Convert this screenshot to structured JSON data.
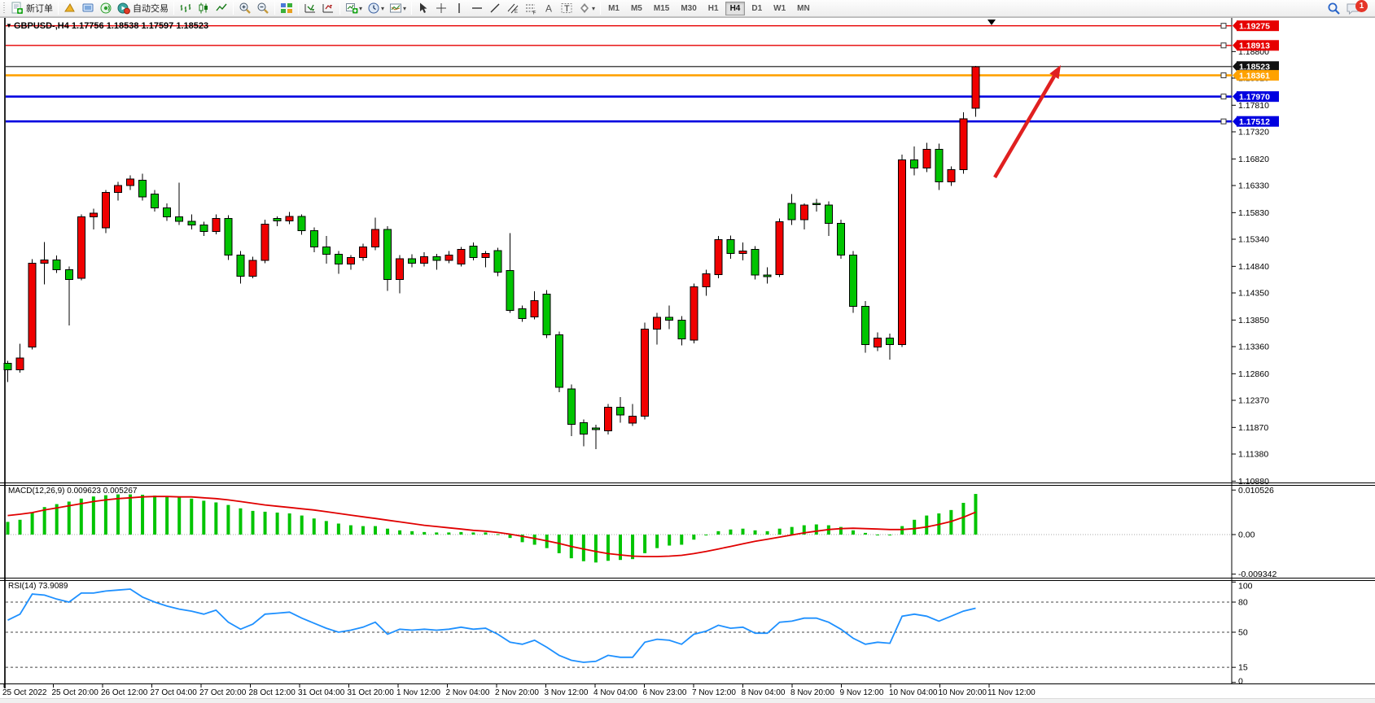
{
  "toolbar": {
    "new_order_label": "新订单",
    "autotrading_label": "自动交易",
    "timeframes": [
      "M1",
      "M5",
      "M15",
      "M30",
      "H1",
      "H4",
      "D1",
      "W1",
      "MN"
    ],
    "active_timeframe": "H4",
    "notification_badge": "1"
  },
  "chart": {
    "title": "GBPUSD-,H4  1.17756 1.18538 1.17597 1.18523",
    "symbol": "GBPUSD-",
    "period": "H4",
    "ohlc": {
      "open": "1.17756",
      "high": "1.18538",
      "low": "1.17597",
      "close": "1.18523"
    },
    "colors": {
      "bull": "#f00000",
      "bear": "#00c400",
      "wick": "#000000",
      "resistance": "#e60000",
      "support": "#0000e0",
      "pivot": "#ffa200",
      "price_line": "#111111"
    },
    "y_axis_labels": [
      "1.18800",
      "1.18310",
      "1.17810",
      "1.17320",
      "1.16820",
      "1.16330",
      "1.15830",
      "1.15340",
      "1.14840",
      "1.14350",
      "1.13850",
      "1.13360",
      "1.12860",
      "1.12370",
      "1.11870",
      "1.11380",
      "1.10880"
    ],
    "price_markers": [
      {
        "label": "1.19275",
        "price": 1.19275,
        "color": "#e60000"
      },
      {
        "label": "1.18913",
        "price": 1.18913,
        "color": "#e60000"
      },
      {
        "label": "1.18523",
        "price": 1.18523,
        "color": "#111111"
      },
      {
        "label": "1.18361",
        "price": 1.18361,
        "color": "#ffa200"
      },
      {
        "label": "1.17970",
        "price": 1.1797,
        "color": "#0000e0"
      },
      {
        "label": "1.17512",
        "price": 1.17512,
        "color": "#0000e0"
      }
    ],
    "hlines": [
      {
        "price": 1.19275,
        "color": "#e60000",
        "w": 1.4,
        "handle": true
      },
      {
        "price": 1.18913,
        "color": "#e60000",
        "w": 1.4,
        "handle": true
      },
      {
        "price": 1.18523,
        "color": "#111111",
        "w": 1.1,
        "handle": false
      },
      {
        "price": 1.18361,
        "color": "#ffa200",
        "w": 2.6,
        "handle": true
      },
      {
        "price": 1.1797,
        "color": "#0000e0",
        "w": 2.6,
        "handle": true
      },
      {
        "price": 1.17512,
        "color": "#0000e0",
        "w": 2.6,
        "handle": true
      }
    ],
    "time_labels": [
      "25 Oct 2022",
      "25 Oct 20:00",
      "26 Oct 12:00",
      "27 Oct 04:00",
      "27 Oct 20:00",
      "28 Oct 12:00",
      "31 Oct 04:00",
      "31 Oct 20:00",
      "1 Nov 12:00",
      "2 Nov 04:00",
      "2 Nov 20:00",
      "3 Nov 12:00",
      "4 Nov 04:00",
      "6 Nov 23:00",
      "7 Nov 12:00",
      "8 Nov 04:00",
      "8 Nov 20:00",
      "9 Nov 12:00",
      "10 Nov 04:00",
      "10 Nov 20:00",
      "11 Nov 12:00"
    ]
  },
  "chart_data": {
    "type": "candlestick",
    "symbol": "GBPUSD",
    "timeframe": "H4",
    "ylim": [
      1.1088,
      1.195
    ],
    "candles": [
      [
        1.1305,
        1.131,
        1.1271,
        1.1293
      ],
      [
        1.1293,
        1.1341,
        1.1288,
        1.1315
      ],
      [
        1.1335,
        1.1497,
        1.1331,
        1.149
      ],
      [
        1.149,
        1.1529,
        1.1451,
        1.1496
      ],
      [
        1.1496,
        1.1504,
        1.1472,
        1.1478
      ],
      [
        1.1478,
        1.1484,
        1.1375,
        1.146
      ],
      [
        1.1462,
        1.158,
        1.1458,
        1.1575
      ],
      [
        1.1575,
        1.159,
        1.1552,
        1.1582
      ],
      [
        1.1555,
        1.1625,
        1.1545,
        1.162
      ],
      [
        1.162,
        1.164,
        1.1605,
        1.1633
      ],
      [
        1.1633,
        1.1652,
        1.1625,
        1.1645
      ],
      [
        1.1643,
        1.1655,
        1.1605,
        1.1612
      ],
      [
        1.1617,
        1.1625,
        1.1585,
        1.1592
      ],
      [
        1.1592,
        1.16,
        1.1568,
        1.1575
      ],
      [
        1.1575,
        1.1638,
        1.156,
        1.1567
      ],
      [
        1.1567,
        1.158,
        1.1552,
        1.156
      ],
      [
        1.156,
        1.1566,
        1.154,
        1.1548
      ],
      [
        1.1548,
        1.158,
        1.1543,
        1.1572
      ],
      [
        1.1572,
        1.1578,
        1.1496,
        1.1505
      ],
      [
        1.1505,
        1.1512,
        1.1452,
        1.1466
      ],
      [
        1.1466,
        1.1502,
        1.1462,
        1.1495
      ],
      [
        1.1495,
        1.157,
        1.149,
        1.1562
      ],
      [
        1.1572,
        1.1576,
        1.1558,
        1.1568
      ],
      [
        1.1568,
        1.1584,
        1.1562,
        1.1576
      ],
      [
        1.1576,
        1.158,
        1.1542,
        1.155
      ],
      [
        1.155,
        1.1556,
        1.151,
        1.152
      ],
      [
        1.152,
        1.154,
        1.1489,
        1.1506
      ],
      [
        1.1506,
        1.1512,
        1.147,
        1.1488
      ],
      [
        1.1488,
        1.1505,
        1.1478,
        1.15
      ],
      [
        1.15,
        1.1526,
        1.1494,
        1.152
      ],
      [
        1.152,
        1.1574,
        1.1514,
        1.1552
      ],
      [
        1.1552,
        1.1558,
        1.1439,
        1.146
      ],
      [
        1.146,
        1.1505,
        1.1434,
        1.1498
      ],
      [
        1.1498,
        1.1506,
        1.1482,
        1.149
      ],
      [
        1.149,
        1.151,
        1.1484,
        1.1502
      ],
      [
        1.1502,
        1.1507,
        1.1478,
        1.1495
      ],
      [
        1.1495,
        1.1512,
        1.149,
        1.1505
      ],
      [
        1.1488,
        1.152,
        1.1484,
        1.1515
      ],
      [
        1.1521,
        1.1528,
        1.1495,
        1.15
      ],
      [
        1.15,
        1.1512,
        1.1482,
        1.1508
      ],
      [
        1.1513,
        1.1518,
        1.1466,
        1.1473
      ],
      [
        1.1476,
        1.1545,
        1.1398,
        1.1403
      ],
      [
        1.1406,
        1.1412,
        1.1382,
        1.1388
      ],
      [
        1.1391,
        1.1438,
        1.1386,
        1.1421
      ],
      [
        1.1433,
        1.144,
        1.1352,
        1.1358
      ],
      [
        1.1358,
        1.1364,
        1.1252,
        1.1261
      ],
      [
        1.1258,
        1.1266,
        1.1171,
        1.1193
      ],
      [
        1.1196,
        1.1202,
        1.1152,
        1.1175
      ],
      [
        1.1186,
        1.1192,
        1.1147,
        1.1183
      ],
      [
        1.1181,
        1.123,
        1.1174,
        1.1224
      ],
      [
        1.1224,
        1.1243,
        1.1196,
        1.121
      ],
      [
        1.1195,
        1.123,
        1.119,
        1.1208
      ],
      [
        1.1208,
        1.138,
        1.1202,
        1.1368
      ],
      [
        1.1368,
        1.1398,
        1.134,
        1.139
      ],
      [
        1.139,
        1.1412,
        1.1368,
        1.1385
      ],
      [
        1.1385,
        1.1392,
        1.1338,
        1.135
      ],
      [
        1.1348,
        1.1452,
        1.1342,
        1.1446
      ],
      [
        1.1446,
        1.1478,
        1.143,
        1.147
      ],
      [
        1.1469,
        1.154,
        1.1462,
        1.1533
      ],
      [
        1.1533,
        1.1541,
        1.1498,
        1.1508
      ],
      [
        1.1508,
        1.1528,
        1.1495,
        1.1512
      ],
      [
        1.1515,
        1.1521,
        1.146,
        1.1468
      ],
      [
        1.1468,
        1.1482,
        1.1452,
        1.1465
      ],
      [
        1.1469,
        1.1572,
        1.1464,
        1.1566
      ],
      [
        1.16,
        1.1617,
        1.156,
        1.157
      ],
      [
        1.157,
        1.16,
        1.1552,
        1.1597
      ],
      [
        1.16,
        1.1608,
        1.1585,
        1.1598
      ],
      [
        1.1597,
        1.1604,
        1.154,
        1.1563
      ],
      [
        1.1563,
        1.157,
        1.1498,
        1.1505
      ],
      [
        1.1505,
        1.1512,
        1.1398,
        1.141
      ],
      [
        1.141,
        1.142,
        1.1325,
        1.134
      ],
      [
        1.1335,
        1.1362,
        1.1328,
        1.1352
      ],
      [
        1.1352,
        1.136,
        1.1312,
        1.134
      ],
      [
        1.134,
        1.169,
        1.1335,
        1.168
      ],
      [
        1.168,
        1.1705,
        1.1652,
        1.1665
      ],
      [
        1.1665,
        1.1712,
        1.1658,
        1.17
      ],
      [
        1.17,
        1.171,
        1.1625,
        1.164
      ],
      [
        1.164,
        1.1668,
        1.1632,
        1.1662
      ],
      [
        1.1662,
        1.1768,
        1.1655,
        1.1756
      ],
      [
        1.17756,
        1.18538,
        1.17597,
        1.18523
      ]
    ],
    "macd_histogram": [
      0.003,
      0.0035,
      0.0052,
      0.0065,
      0.0072,
      0.0078,
      0.0085,
      0.009,
      0.0093,
      0.0095,
      0.0095,
      0.0094,
      0.0092,
      0.009,
      0.0088,
      0.0085,
      0.008,
      0.0076,
      0.007,
      0.0062,
      0.0056,
      0.0054,
      0.0052,
      0.005,
      0.0045,
      0.0038,
      0.0032,
      0.0026,
      0.0022,
      0.002,
      0.002,
      0.0014,
      0.001,
      0.0008,
      0.0006,
      0.0005,
      0.0005,
      0.0006,
      0.0005,
      0.0005,
      0.0001,
      -0.0008,
      -0.0018,
      -0.0024,
      -0.0032,
      -0.0044,
      -0.0056,
      -0.0063,
      -0.0066,
      -0.0062,
      -0.006,
      -0.0058,
      -0.0044,
      -0.0032,
      -0.0026,
      -0.0024,
      -0.0012,
      -0.0002,
      0.0008,
      0.0012,
      0.0014,
      0.001,
      0.0008,
      0.0014,
      0.0018,
      0.0022,
      0.0024,
      0.0022,
      0.0018,
      0.001,
      0.0004,
      0.0,
      -0.0002,
      0.002,
      0.0035,
      0.0045,
      0.005,
      0.0058,
      0.0075,
      0.0096
    ],
    "macd_signal": [
      0.0045,
      0.0048,
      0.0052,
      0.0058,
      0.0063,
      0.0068,
      0.0073,
      0.0078,
      0.0082,
      0.0085,
      0.0087,
      0.0089,
      0.009,
      0.009,
      0.0089,
      0.0089,
      0.0087,
      0.0085,
      0.0082,
      0.0078,
      0.0074,
      0.007,
      0.0067,
      0.0064,
      0.0061,
      0.0058,
      0.0054,
      0.005,
      0.0046,
      0.0042,
      0.0038,
      0.0034,
      0.003,
      0.0026,
      0.0022,
      0.0019,
      0.0016,
      0.0013,
      0.001,
      0.0008,
      0.0005,
      0.0001,
      -0.0004,
      -0.0009,
      -0.0015,
      -0.0021,
      -0.0028,
      -0.0034,
      -0.004,
      -0.0045,
      -0.0048,
      -0.0051,
      -0.0052,
      -0.0052,
      -0.0051,
      -0.0049,
      -0.0045,
      -0.004,
      -0.0034,
      -0.0028,
      -0.0022,
      -0.0016,
      -0.0011,
      -0.0006,
      -0.0001,
      0.0004,
      0.0008,
      0.0012,
      0.0014,
      0.0015,
      0.0014,
      0.0013,
      0.0012,
      0.0012,
      0.0014,
      0.0018,
      0.0024,
      0.0031,
      0.0041,
      0.0053
    ],
    "rsi_values": [
      62,
      68,
      88,
      87,
      83,
      80,
      89,
      89,
      91,
      92,
      93,
      85,
      80,
      76,
      73,
      71,
      68,
      72,
      60,
      53,
      58,
      68,
      69,
      70,
      64,
      59,
      54,
      50,
      52,
      55,
      60,
      48,
      53,
      52,
      53,
      52,
      53,
      55,
      53,
      54,
      48,
      40,
      38,
      42,
      35,
      27,
      22,
      20,
      21,
      27,
      25,
      25,
      40,
      43,
      42,
      38,
      48,
      51,
      57,
      54,
      55,
      49,
      49,
      60,
      61,
      64,
      64,
      60,
      53,
      44,
      38,
      40,
      39,
      66,
      68,
      66,
      61,
      66,
      71,
      73.9
    ]
  },
  "macd": {
    "label": "MACD(12,26,9) 0.009623 0.005267",
    "macd_value": "0.009623",
    "signal_value": "0.005267",
    "axis_labels": [
      {
        "text": "0.010526",
        "value": 0.010526
      },
      {
        "text": "0.00",
        "value": 0.0
      },
      {
        "text": "-0.009342",
        "value": -0.009342
      }
    ],
    "colors": {
      "histogram": "#00c400",
      "signal": "#e00000"
    }
  },
  "rsi": {
    "label": "RSI(14) 73.9089",
    "value": "73.9089",
    "levels": [
      80,
      50,
      15
    ],
    "axis_labels": [
      {
        "text": "100",
        "value": 100
      },
      {
        "text": "80",
        "value": 80
      },
      {
        "text": "50",
        "value": 50
      },
      {
        "text": "15",
        "value": 15
      },
      {
        "text": "0",
        "value": 0
      }
    ],
    "color": "#1e90ff"
  },
  "annotation_arrow": {
    "from": [
      1222,
      218
    ],
    "to": [
      1303,
      80
    ],
    "color": "#e02020",
    "width": 4.5
  }
}
